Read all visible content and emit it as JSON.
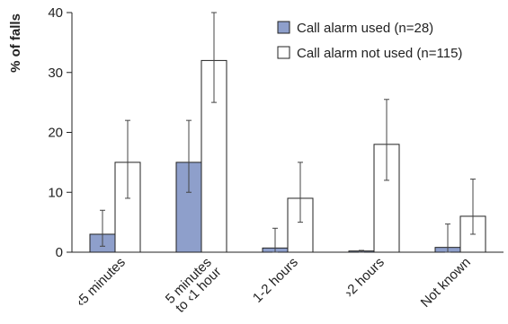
{
  "chart_data": {
    "type": "bar",
    "ylabel": "% of falls",
    "ylim": [
      0,
      40
    ],
    "yticks": [
      0,
      10,
      20,
      30,
      40
    ],
    "categories": [
      [
        "‹5 minutes"
      ],
      [
        "5 minutes",
        "to ‹1 hour"
      ],
      [
        "1-2 hours"
      ],
      [
        "›2 hours"
      ],
      [
        "Not known"
      ]
    ],
    "series": [
      {
        "name": "Call alarm used (n=28)",
        "color": "#8e9fcb",
        "values": [
          3,
          15,
          0.7,
          0.2,
          0.8
        ],
        "ci_low": [
          1,
          10,
          0,
          0,
          0
        ],
        "ci_high": [
          7,
          22,
          4,
          0.3,
          4.7
        ]
      },
      {
        "name": "Call alarm not used (n=115)",
        "color": "#ffffff",
        "values": [
          15,
          32,
          9,
          18,
          6
        ],
        "ci_low": [
          9,
          25,
          5,
          12,
          3
        ],
        "ci_high": [
          22,
          40,
          15,
          25.5,
          12.2
        ]
      }
    ],
    "legend_position": "top-right",
    "grid": false,
    "error_bars": true
  }
}
